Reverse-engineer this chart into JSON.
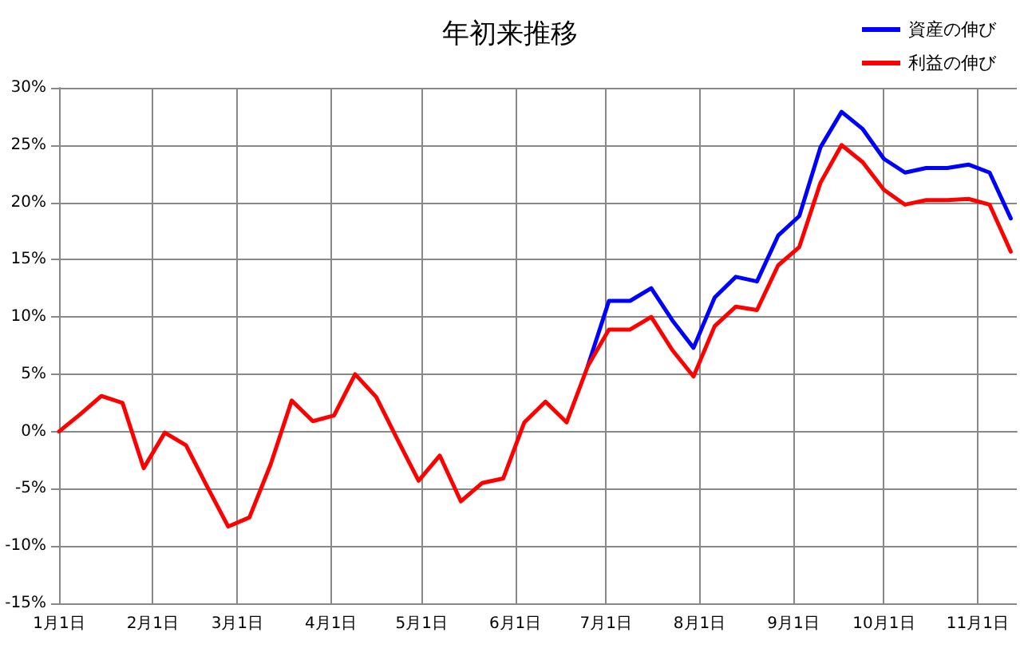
{
  "chart_data": {
    "type": "line",
    "title": "年初来推移",
    "x": [
      "--01-01",
      "--01-08",
      "--01-15",
      "--01-22",
      "--01-29",
      "--02-05",
      "--02-12",
      "--02-19",
      "--02-26",
      "--03-05",
      "--03-12",
      "--03-19",
      "--03-26",
      "--04-02",
      "--04-09",
      "--04-16",
      "--04-23",
      "--04-30",
      "--05-07",
      "--05-14",
      "--05-21",
      "--05-28",
      "--06-04",
      "--06-11",
      "--06-18",
      "--06-25",
      "--07-02",
      "--07-09",
      "--07-16",
      "--07-23",
      "--07-30",
      "--08-06",
      "--08-13",
      "--08-20",
      "--08-27",
      "--09-03",
      "--09-10",
      "--09-17",
      "--09-24",
      "--10-01",
      "--10-08",
      "--10-15",
      "--10-22",
      "--10-29",
      "--11-05",
      "--11-12"
    ],
    "series": [
      {
        "name": "資産の伸び",
        "color": "#0000ff",
        "values": [
          null,
          null,
          null,
          null,
          null,
          null,
          null,
          null,
          null,
          null,
          null,
          null,
          null,
          null,
          null,
          null,
          null,
          null,
          null,
          null,
          null,
          null,
          null,
          null,
          null,
          5.7,
          11.4,
          11.4,
          12.5,
          9.7,
          7.3,
          11.7,
          13.5,
          13.1,
          17.1,
          18.8,
          24.8,
          27.9,
          26.4,
          23.8,
          22.6,
          23.0,
          23.0,
          23.3,
          22.6,
          18.6
        ]
      },
      {
        "name": "利益の伸び",
        "color": "#ff0000",
        "values": [
          0,
          1.5,
          3.1,
          2.5,
          -3.2,
          -0.1,
          -1.2,
          -4.8,
          -8.3,
          -7.5,
          -2.9,
          2.7,
          0.9,
          1.4,
          5.0,
          3.0,
          -0.7,
          -4.3,
          -2.1,
          -6.1,
          -4.5,
          -4.1,
          0.8,
          2.6,
          0.8,
          5.7,
          8.9,
          8.9,
          10.0,
          7.1,
          4.8,
          9.2,
          10.9,
          10.6,
          14.5,
          16.1,
          21.7,
          25.0,
          23.5,
          21.1,
          19.8,
          20.2,
          20.2,
          20.3,
          19.8,
          15.7
        ]
      }
    ],
    "xlim": [
      "--01-01",
      "--11-14"
    ],
    "xticks": [
      {
        "value": "--01-01",
        "label": "1月1日"
      },
      {
        "value": "--02-01",
        "label": "2月1日"
      },
      {
        "value": "--03-01",
        "label": "3月1日"
      },
      {
        "value": "--04-01",
        "label": "4月1日"
      },
      {
        "value": "--05-01",
        "label": "5月1日"
      },
      {
        "value": "--06-01",
        "label": "6月1日"
      },
      {
        "value": "--07-01",
        "label": "7月1日"
      },
      {
        "value": "--08-01",
        "label": "8月1日"
      },
      {
        "value": "--09-01",
        "label": "9月1日"
      },
      {
        "value": "--10-01",
        "label": "10月1日"
      },
      {
        "value": "--11-01",
        "label": "11月1日"
      }
    ],
    "ylim": [
      -15,
      30
    ],
    "yticks": [
      {
        "value": -15,
        "label": "-15%"
      },
      {
        "value": -10,
        "label": "-10%"
      },
      {
        "value": -5,
        "label": "-5%"
      },
      {
        "value": 0,
        "label": "0%"
      },
      {
        "value": 5,
        "label": "5%"
      },
      {
        "value": 10,
        "label": "10%"
      },
      {
        "value": 15,
        "label": "15%"
      },
      {
        "value": 20,
        "label": "20%"
      },
      {
        "value": 25,
        "label": "25%"
      },
      {
        "value": 30,
        "label": "30%"
      }
    ],
    "grid": true,
    "legend": "top right",
    "marker": "none",
    "line_style": "solid"
  }
}
